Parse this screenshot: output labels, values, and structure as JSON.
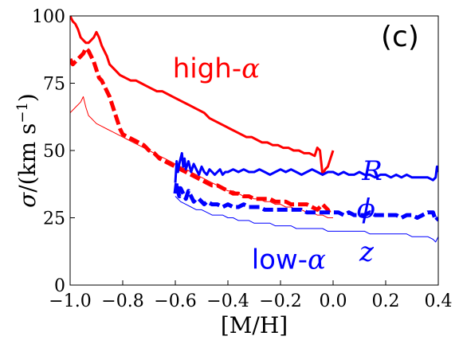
{
  "chart_data": {
    "type": "line",
    "panel_label": "(c)",
    "xlabel": "[M/H]",
    "ylabel_symbol": "σ",
    "ylabel_unit": "/(km s",
    "ylabel_exp": "−1",
    "ylabel_close": ")",
    "xlim": [
      -1.0,
      0.4
    ],
    "ylim": [
      0,
      100
    ],
    "xticks": [
      -1.0,
      -0.8,
      -0.6,
      -0.4,
      -0.2,
      0.0,
      0.2,
      0.4
    ],
    "xtick_labels": [
      "−1.0",
      "−0.8",
      "−0.6",
      "−0.4",
      "−0.2",
      "0.0",
      "0.2",
      "0.4"
    ],
    "yticks": [
      0,
      25,
      50,
      75,
      100
    ],
    "ytick_labels": [
      "0",
      "25",
      "50",
      "75",
      "100"
    ],
    "annotations": [
      {
        "id": "high-alpha",
        "text_main": "high-",
        "text_greek": "α",
        "x": -0.61,
        "y": 77,
        "color": "#ff0000"
      },
      {
        "id": "low-alpha",
        "text_main": "low-",
        "text_greek": "α",
        "x": -0.31,
        "y": 6,
        "color": "#0000ff"
      },
      {
        "id": "label-R",
        "text_main": "",
        "text_greek": "R",
        "x": 0.11,
        "y": 39,
        "color": "#0000ff"
      },
      {
        "id": "label-phi",
        "text_main": "",
        "text_greek": "ϕ",
        "x": 0.09,
        "y": 25,
        "color": "#0000ff"
      },
      {
        "id": "label-z",
        "text_main": "",
        "text_greek": "z",
        "x": 0.1,
        "y": 9,
        "color": "#0000ff"
      }
    ],
    "series": [
      {
        "id": "high-alpha-R",
        "color": "#ff0000",
        "style": "solid",
        "width": 3,
        "x": [
          -1.0,
          -0.99,
          -0.98,
          -0.97,
          -0.96,
          -0.95,
          -0.94,
          -0.93,
          -0.92,
          -0.91,
          -0.9,
          -0.89,
          -0.88,
          -0.87,
          -0.86,
          -0.85,
          -0.83,
          -0.81,
          -0.79,
          -0.77,
          -0.75,
          -0.73,
          -0.71,
          -0.69,
          -0.67,
          -0.65,
          -0.63,
          -0.61,
          -0.59,
          -0.57,
          -0.55,
          -0.53,
          -0.51,
          -0.49,
          -0.47,
          -0.45,
          -0.43,
          -0.41,
          -0.39,
          -0.37,
          -0.35,
          -0.33,
          -0.31,
          -0.29,
          -0.27,
          -0.25,
          -0.23,
          -0.21,
          -0.19,
          -0.17,
          -0.15,
          -0.13,
          -0.11,
          -0.09,
          -0.07,
          -0.06,
          -0.05,
          -0.04,
          -0.03,
          -0.02,
          -0.01,
          0.0
        ],
        "y": [
          100,
          98,
          97,
          95,
          92,
          91,
          90,
          90,
          91,
          92,
          94,
          92,
          89,
          87,
          85,
          82,
          80,
          78,
          77,
          76,
          76,
          75,
          74,
          73,
          72,
          72,
          71,
          70,
          69,
          68,
          67,
          66,
          65,
          64,
          62,
          61,
          60,
          59,
          58,
          57,
          56,
          55,
          55,
          54,
          53,
          53,
          52,
          52,
          51,
          51,
          50,
          50,
          49,
          49,
          48,
          51,
          50,
          41,
          43,
          44,
          47,
          50
        ]
      },
      {
        "id": "high-alpha-phi",
        "color": "#ff0000",
        "style": "dashed",
        "width": 5,
        "x": [
          -1.0,
          -0.99,
          -0.98,
          -0.97,
          -0.96,
          -0.95,
          -0.94,
          -0.93,
          -0.92,
          -0.91,
          -0.9,
          -0.89,
          -0.88,
          -0.87,
          -0.86,
          -0.85,
          -0.84,
          -0.83,
          -0.82,
          -0.81,
          -0.8,
          -0.78,
          -0.76,
          -0.74,
          -0.72,
          -0.7,
          -0.68,
          -0.66,
          -0.64,
          -0.62,
          -0.6,
          -0.58,
          -0.56,
          -0.54,
          -0.52,
          -0.5,
          -0.48,
          -0.46,
          -0.44,
          -0.42,
          -0.4,
          -0.38,
          -0.36,
          -0.34,
          -0.32,
          -0.3,
          -0.28,
          -0.26,
          -0.24,
          -0.22,
          -0.2,
          -0.18,
          -0.16,
          -0.14,
          -0.12,
          -0.1,
          -0.08,
          -0.06,
          -0.04,
          -0.03,
          -0.02,
          -0.01
        ],
        "y": [
          84,
          82,
          83,
          84,
          85,
          86,
          88,
          87,
          85,
          83,
          80,
          77,
          76,
          74,
          72,
          70,
          67,
          64,
          61,
          58,
          56,
          55,
          54,
          53,
          52,
          50,
          49,
          47,
          46,
          45,
          44,
          43,
          42,
          41,
          40,
          39,
          38,
          37,
          37,
          36,
          35,
          34,
          34,
          33,
          33,
          32,
          32,
          32,
          32,
          31,
          31,
          31,
          30,
          30,
          30,
          30,
          29,
          28,
          30,
          29,
          28,
          26
        ]
      },
      {
        "id": "high-alpha-z",
        "color": "#ff0000",
        "style": "solid",
        "width": 1,
        "x": [
          -1.0,
          -0.98,
          -0.96,
          -0.95,
          -0.94,
          -0.93,
          -0.92,
          -0.91,
          -0.9,
          -0.88,
          -0.86,
          -0.84,
          -0.82,
          -0.8,
          -0.78,
          -0.76,
          -0.74,
          -0.72,
          -0.7,
          -0.68,
          -0.66,
          -0.64,
          -0.62,
          -0.6,
          -0.58,
          -0.56,
          -0.54,
          -0.52,
          -0.5,
          -0.48,
          -0.46,
          -0.44,
          -0.42,
          -0.4,
          -0.38,
          -0.36,
          -0.34,
          -0.32,
          -0.3,
          -0.28,
          -0.26,
          -0.24,
          -0.22,
          -0.2,
          -0.18,
          -0.16,
          -0.14,
          -0.12,
          -0.1,
          -0.08,
          -0.06,
          -0.04,
          -0.02,
          0.0
        ],
        "y": [
          64,
          66,
          68,
          70,
          66,
          63,
          62,
          61,
          60,
          59,
          58,
          57,
          56,
          55,
          54,
          53,
          52,
          51,
          50,
          49,
          48,
          47,
          46,
          45,
          44,
          43,
          42,
          41,
          40,
          39,
          38,
          37,
          36,
          35,
          35,
          34,
          33,
          33,
          32,
          32,
          31,
          31,
          30,
          30,
          29,
          29,
          28,
          28,
          27,
          27,
          26,
          26,
          25,
          25
        ]
      },
      {
        "id": "low-alpha-R",
        "color": "#0000ff",
        "style": "solid",
        "width": 3,
        "x": [
          -0.6,
          -0.595,
          -0.59,
          -0.585,
          -0.58,
          -0.575,
          -0.57,
          -0.565,
          -0.56,
          -0.55,
          -0.54,
          -0.53,
          -0.52,
          -0.51,
          -0.5,
          -0.49,
          -0.48,
          -0.47,
          -0.46,
          -0.45,
          -0.44,
          -0.43,
          -0.42,
          -0.41,
          -0.4,
          -0.38,
          -0.36,
          -0.34,
          -0.32,
          -0.3,
          -0.28,
          -0.26,
          -0.24,
          -0.22,
          -0.2,
          -0.18,
          -0.16,
          -0.14,
          -0.12,
          -0.1,
          -0.08,
          -0.06,
          -0.04,
          -0.02,
          0.0,
          0.02,
          0.04,
          0.06,
          0.08,
          0.1,
          0.12,
          0.14,
          0.16,
          0.18,
          0.2,
          0.22,
          0.24,
          0.26,
          0.28,
          0.3,
          0.32,
          0.34,
          0.36,
          0.38,
          0.39,
          0.395,
          0.4
        ],
        "y": [
          38,
          46,
          42,
          45,
          47,
          49,
          44,
          47,
          43,
          46,
          42,
          45,
          43,
          41,
          44,
          42,
          41,
          43,
          42,
          41,
          42,
          43,
          41,
          42,
          42,
          43,
          42,
          43,
          42,
          42,
          43,
          42,
          41,
          42,
          43,
          42,
          43,
          42,
          41,
          42,
          43,
          42,
          41,
          42,
          42,
          41,
          42,
          41,
          41,
          42,
          41,
          41,
          40,
          41,
          41,
          40,
          41,
          40,
          41,
          40,
          40,
          40,
          40,
          39,
          40,
          44,
          42
        ]
      },
      {
        "id": "low-alpha-phi",
        "color": "#0000ff",
        "style": "dashed",
        "width": 5,
        "x": [
          -0.6,
          -0.595,
          -0.59,
          -0.585,
          -0.58,
          -0.57,
          -0.56,
          -0.55,
          -0.54,
          -0.53,
          -0.52,
          -0.51,
          -0.5,
          -0.49,
          -0.48,
          -0.46,
          -0.44,
          -0.42,
          -0.4,
          -0.38,
          -0.36,
          -0.34,
          -0.32,
          -0.3,
          -0.28,
          -0.26,
          -0.24,
          -0.22,
          -0.2,
          -0.18,
          -0.16,
          -0.14,
          -0.12,
          -0.1,
          -0.08,
          -0.06,
          -0.04,
          -0.02,
          0.0,
          0.02,
          0.04,
          0.06,
          0.08,
          0.1,
          0.12,
          0.14,
          0.16,
          0.18,
          0.2,
          0.22,
          0.24,
          0.26,
          0.28,
          0.3,
          0.32,
          0.34,
          0.36,
          0.38,
          0.39,
          0.4
        ],
        "y": [
          34,
          38,
          35,
          33,
          36,
          34,
          32,
          35,
          33,
          31,
          32,
          32,
          31,
          30,
          31,
          30,
          30,
          29,
          30,
          29,
          29,
          30,
          29,
          29,
          29,
          28,
          28,
          28,
          28,
          28,
          28,
          28,
          28,
          27,
          27,
          27,
          27,
          27,
          27,
          27,
          26,
          27,
          26,
          26,
          26,
          27,
          26,
          26,
          26,
          26,
          26,
          25,
          26,
          26,
          25,
          26,
          27,
          27,
          24,
          25
        ]
      },
      {
        "id": "low-alpha-z",
        "color": "#0000ff",
        "style": "solid",
        "width": 1,
        "x": [
          -0.6,
          -0.58,
          -0.56,
          -0.54,
          -0.52,
          -0.5,
          -0.48,
          -0.46,
          -0.44,
          -0.42,
          -0.4,
          -0.38,
          -0.36,
          -0.34,
          -0.32,
          -0.3,
          -0.28,
          -0.26,
          -0.24,
          -0.22,
          -0.2,
          -0.18,
          -0.16,
          -0.14,
          -0.12,
          -0.1,
          -0.08,
          -0.06,
          -0.04,
          -0.02,
          0.0,
          0.02,
          0.04,
          0.06,
          0.08,
          0.1,
          0.12,
          0.14,
          0.16,
          0.18,
          0.2,
          0.22,
          0.24,
          0.26,
          0.28,
          0.3,
          0.32,
          0.34,
          0.36,
          0.38,
          0.39,
          0.4
        ],
        "y": [
          33,
          31,
          30,
          29,
          28,
          28,
          27,
          26,
          26,
          26,
          25,
          25,
          24,
          24,
          24,
          23,
          23,
          23,
          23,
          22,
          22,
          22,
          22,
          21,
          21,
          21,
          21,
          21,
          21,
          20,
          20,
          20,
          20,
          20,
          20,
          20,
          20,
          19,
          19,
          19,
          19,
          19,
          19,
          19,
          19,
          18,
          18,
          18,
          18,
          17,
          16,
          18
        ]
      }
    ]
  }
}
